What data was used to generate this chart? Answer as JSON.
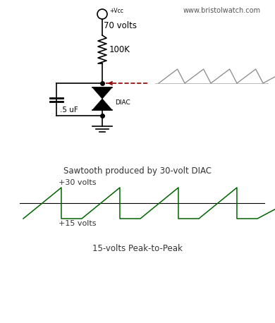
{
  "bg_color": "#ffffff",
  "website": "www.bristolwatch.com",
  "vcc_label": "+Vcc",
  "vcc_volts": "70 volts",
  "resistor_label": "100K",
  "cap_label": ".5 uF",
  "diac_label": "DIAC",
  "sawtooth_title": "Sawtooth produced by 30-volt DIAC",
  "label_30v": "+30 volts",
  "label_15v": "+15 volts",
  "label_pp": "15-volts Peak-to-Peak",
  "circuit_color": "#000000",
  "diac_arrow_color": "#8B0000",
  "sawtooth_top_color": "#888888",
  "sawtooth_bottom_color": "#006400",
  "fig_width": 3.9,
  "fig_height": 4.58,
  "dpi": 100
}
